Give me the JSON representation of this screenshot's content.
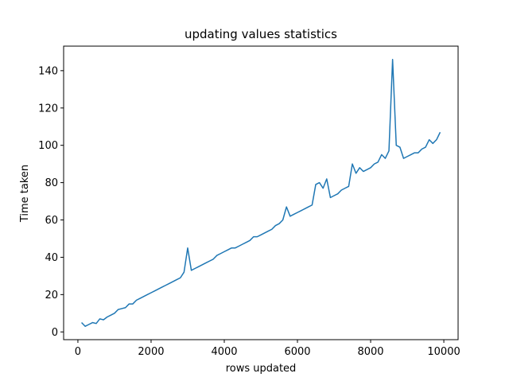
{
  "chart_data": {
    "type": "line",
    "title": "updating values statistics",
    "xlabel": "rows updated",
    "ylabel": "Time taken",
    "x": [
      100,
      200,
      300,
      400,
      500,
      600,
      700,
      800,
      900,
      1000,
      1100,
      1200,
      1300,
      1400,
      1500,
      1600,
      1700,
      1800,
      1900,
      2000,
      2100,
      2200,
      2300,
      2400,
      2500,
      2600,
      2700,
      2800,
      2900,
      3000,
      3100,
      3200,
      3300,
      3400,
      3500,
      3600,
      3700,
      3800,
      3900,
      4000,
      4100,
      4200,
      4300,
      4400,
      4500,
      4600,
      4700,
      4800,
      4900,
      5000,
      5100,
      5200,
      5300,
      5400,
      5500,
      5600,
      5700,
      5800,
      5900,
      6000,
      6100,
      6200,
      6300,
      6400,
      6500,
      6600,
      6700,
      6800,
      6900,
      7000,
      7100,
      7200,
      7300,
      7400,
      7500,
      7600,
      7700,
      7800,
      7900,
      8000,
      8100,
      8200,
      8300,
      8400,
      8500,
      8600,
      8700,
      8800,
      8900,
      9000,
      9100,
      9200,
      9300,
      9400,
      9500,
      9600,
      9700,
      9800,
      9900
    ],
    "series": [
      {
        "name": "Time taken",
        "color": "#1f77b4",
        "values": [
          5,
          3,
          4,
          5,
          4.5,
          7,
          6.5,
          8,
          9,
          10,
          12,
          12.5,
          13,
          15,
          15,
          17,
          18,
          19,
          20,
          21,
          22,
          23,
          24,
          25,
          26,
          27,
          28,
          29,
          32,
          45,
          33,
          34,
          35,
          36,
          37,
          38,
          39,
          41,
          42,
          43,
          44,
          45,
          45,
          46,
          47,
          48,
          49,
          51,
          51,
          52,
          53,
          54,
          55,
          57,
          58,
          60,
          67,
          62,
          63,
          64,
          65,
          66,
          67,
          68,
          79,
          80,
          77,
          82,
          72,
          73,
          74,
          76,
          77,
          78,
          90,
          85,
          88,
          86,
          87,
          88,
          90,
          91,
          95,
          93,
          97,
          146,
          100,
          99,
          93,
          94,
          95,
          96,
          96,
          98,
          99,
          103,
          101,
          103,
          107
        ]
      }
    ],
    "xlim": [
      -390,
      10390
    ],
    "ylim": [
      -4.15,
      153.15
    ],
    "xticks": [
      0,
      2000,
      4000,
      6000,
      8000,
      10000
    ],
    "yticks": [
      0,
      20,
      40,
      60,
      80,
      100,
      120,
      140
    ],
    "grid": false
  }
}
